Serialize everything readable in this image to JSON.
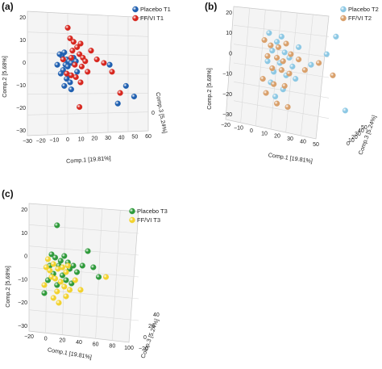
{
  "chart_data": [
    {
      "type": "scatter",
      "panel": "(a)",
      "xlabel": "Comp.1 [19.81%]",
      "ylabel": "Comp.2 [5.68%]",
      "zlabel": "Comp.3 [5.24%]",
      "x_ticks": [
        "−30",
        "−20",
        "−10",
        "0",
        "10",
        "20",
        "30",
        "40",
        "50",
        "60"
      ],
      "y_ticks": [
        "20",
        "10",
        "0",
        "−10",
        "−20",
        "−30"
      ],
      "z_ticks": [
        "0"
      ],
      "legend_placement": "top-right",
      "series": [
        {
          "name": "Placebo T1",
          "color": "#1f5fb0",
          "points": [
            [
              -8,
              9
            ],
            [
              -10,
              7
            ],
            [
              -6,
              5
            ],
            [
              -4,
              4
            ],
            [
              -2,
              3
            ],
            [
              -7,
              2
            ],
            [
              -12,
              8
            ],
            [
              -5,
              1
            ],
            [
              0,
              6
            ],
            [
              2,
              4
            ],
            [
              -9,
              -1
            ],
            [
              -11,
              -3
            ],
            [
              -4,
              -4
            ],
            [
              -6,
              -6
            ],
            [
              -3,
              -8
            ],
            [
              3,
              -2
            ],
            [
              -8,
              -10
            ],
            [
              -14,
              2
            ],
            [
              45,
              -10
            ],
            [
              52,
              -16
            ],
            [
              38,
              -20
            ],
            [
              31,
              2
            ],
            [
              -2,
              -12
            ]
          ]
        },
        {
          "name": "FF/VI T1",
          "color": "#d7261e",
          "points": [
            [
              -5,
              23
            ],
            [
              -3,
              17
            ],
            [
              0,
              15
            ],
            [
              3,
              12
            ],
            [
              6,
              14
            ],
            [
              -1,
              10
            ],
            [
              5,
              8
            ],
            [
              8,
              6
            ],
            [
              10,
              4
            ],
            [
              -2,
              6
            ],
            [
              1,
              2
            ],
            [
              7,
              1
            ],
            [
              12,
              -2
            ],
            [
              2,
              -5
            ],
            [
              6,
              -8
            ],
            [
              -6,
              -3
            ],
            [
              -9,
              5
            ],
            [
              15,
              10
            ],
            [
              20,
              5
            ],
            [
              26,
              3
            ],
            [
              33,
              -2
            ],
            [
              40,
              -14
            ],
            [
              5,
              -22
            ],
            [
              -2,
              -4
            ]
          ]
        }
      ]
    },
    {
      "type": "scatter",
      "panel": "(b)",
      "xlabel": "Comp.1 [19.81%]",
      "ylabel": "Comp.2 [5.68%]",
      "zlabel": "Comp.3 [5.24%]",
      "x_ticks": [
        "−20",
        "−10",
        "0",
        "10",
        "20",
        "30",
        "40",
        "50"
      ],
      "y_ticks": [
        "20",
        "10",
        "0",
        "−10",
        "−20",
        "−30"
      ],
      "z_ticks": [
        "0",
        "10",
        "20",
        "30",
        "40",
        "50"
      ],
      "legend_placement": "top-right",
      "series": [
        {
          "name": "Placebo T2",
          "color": "#8cc8e4",
          "points": [
            [
              -5,
              20
            ],
            [
              0,
              15
            ],
            [
              3,
              18
            ],
            [
              -3,
              10
            ],
            [
              5,
              9
            ],
            [
              8,
              6
            ],
            [
              -6,
              4
            ],
            [
              2,
              3
            ],
            [
              10,
              1
            ],
            [
              -2,
              -2
            ],
            [
              6,
              -4
            ],
            [
              12,
              -6
            ],
            [
              -4,
              -8
            ],
            [
              4,
              -12
            ],
            [
              -1,
              -16
            ],
            [
              22,
              2
            ],
            [
              32,
              8
            ],
            [
              38,
              18
            ],
            [
              14,
              12
            ],
            [
              44,
              -24
            ]
          ]
        },
        {
          "name": "FF/VI T2",
          "color": "#d9a06b",
          "points": [
            [
              -8,
              16
            ],
            [
              -4,
              13
            ],
            [
              1,
              12
            ],
            [
              6,
              14
            ],
            [
              -6,
              7
            ],
            [
              0,
              6
            ],
            [
              4,
              4
            ],
            [
              9,
              8
            ],
            [
              14,
              5
            ],
            [
              -3,
              0
            ],
            [
              3,
              -1
            ],
            [
              8,
              -3
            ],
            [
              -9,
              -6
            ],
            [
              -2,
              -9
            ],
            [
              5,
              -10
            ],
            [
              0,
              -20
            ],
            [
              7,
              -22
            ],
            [
              18,
              -1
            ],
            [
              27,
              3
            ],
            [
              36,
              -4
            ],
            [
              -7,
              -14
            ]
          ]
        }
      ]
    },
    {
      "type": "scatter",
      "panel": "(c)",
      "xlabel": "Comp.1 [19.81%]",
      "ylabel": "Comp.2 [5.68%]",
      "zlabel": "Comp.3 [5.24%]",
      "x_ticks": [
        "−20",
        "0",
        "20",
        "40",
        "60",
        "80",
        "100"
      ],
      "y_ticks": [
        "20",
        "10",
        "0",
        "−10",
        "−20",
        "−30"
      ],
      "z_ticks": [
        "−20",
        "0",
        "20",
        "40"
      ],
      "legend_placement": "top-left",
      "series": [
        {
          "name": "Placebo T3",
          "color": "#2e9a3a",
          "points": [
            [
              -6,
              28
            ],
            [
              -12,
              10
            ],
            [
              -8,
              8
            ],
            [
              -2,
              6
            ],
            [
              2,
              9
            ],
            [
              6,
              5
            ],
            [
              -14,
              3
            ],
            [
              -4,
              3
            ],
            [
              8,
              1
            ],
            [
              12,
              3
            ],
            [
              -10,
              -2
            ],
            [
              0,
              -3
            ],
            [
              4,
              -6
            ],
            [
              10,
              -8
            ],
            [
              -16,
              -6
            ],
            [
              -6,
              -9
            ],
            [
              16,
              -1
            ],
            [
              22,
              3
            ],
            [
              28,
              12
            ],
            [
              34,
              2
            ],
            [
              40,
              -4
            ],
            [
              -20,
              -14
            ]
          ]
        },
        {
          "name": "FF/VI T3",
          "color": "#f2d22e",
          "points": [
            [
              -16,
              7
            ],
            [
              -10,
              4
            ],
            [
              -5,
              1
            ],
            [
              0,
              2
            ],
            [
              4,
              -1
            ],
            [
              -12,
              -4
            ],
            [
              -8,
              -5
            ],
            [
              -2,
              -7
            ],
            [
              2,
              -10
            ],
            [
              8,
              -12
            ],
            [
              -14,
              0
            ],
            [
              -18,
              2
            ],
            [
              6,
              3
            ],
            [
              14,
              -6
            ],
            [
              -6,
              -13
            ],
            [
              -10,
              -17
            ],
            [
              -4,
              -20
            ],
            [
              20,
              -12
            ],
            [
              48,
              -4
            ],
            [
              4,
              -16
            ],
            [
              -20,
              -9
            ]
          ]
        }
      ]
    }
  ]
}
